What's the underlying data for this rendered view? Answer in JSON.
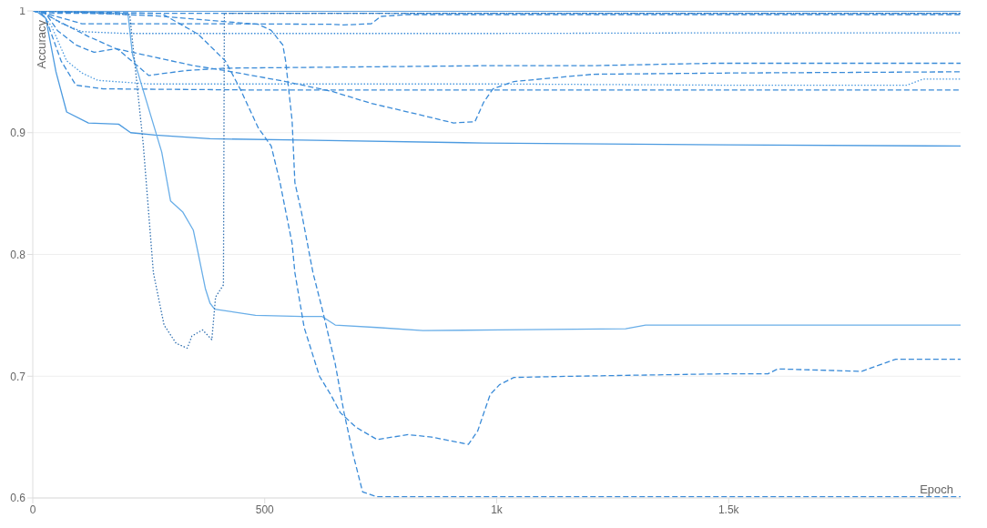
{
  "chart_data": {
    "type": "line",
    "xlabel": "Epoch",
    "ylabel": "Accuracy",
    "xlim": [
      0,
      2000
    ],
    "xticks": [
      0,
      500,
      {
        "value": 1000,
        "label": "1k"
      },
      {
        "value": 1500,
        "label": "1.5k"
      }
    ],
    "ylim": [
      0.6,
      1
    ],
    "yticks": [
      0.6,
      0.7,
      0.8,
      0.9,
      1
    ],
    "grid": "y",
    "series": [
      {
        "color": "#3a8bd8",
        "line_style": "solid",
        "x": [
          0,
          2000
        ],
        "values": [
          1,
          1
        ]
      },
      {
        "color": "#3a8bd8",
        "line_style": "dashed",
        "x": [
          0,
          50,
          500,
          1000,
          1500,
          2000
        ],
        "values": [
          1,
          0.998,
          0.998,
          0.998,
          0.998,
          0.998
        ]
      },
      {
        "color": "#3a8bd8",
        "line_style": "dashed",
        "x": [
          0,
          28,
          106,
          400,
          644,
          671,
          730,
          750,
          809,
          1200,
          1600,
          2000
        ],
        "values": [
          1,
          0.998,
          0.9895,
          0.9895,
          0.989,
          0.9885,
          0.9895,
          0.9955,
          0.997,
          0.997,
          0.997,
          0.997
        ]
      },
      {
        "color": "#3a8bd8",
        "line_style": "dotted",
        "x": [
          0,
          22,
          60,
          106,
          200,
          500,
          1000,
          1500,
          2000
        ],
        "values": [
          1,
          0.999,
          0.99,
          0.983,
          0.9815,
          0.9815,
          0.9815,
          0.982,
          0.982
        ]
      },
      {
        "color": "#3a8bd8",
        "line_style": "dashed",
        "x": [
          0,
          20,
          53,
          120,
          185,
          250,
          329,
          415,
          700,
          972,
          1200,
          1465,
          2000
        ],
        "values": [
          1,
          0.999,
          0.992,
          0.979,
          0.968,
          0.947,
          0.951,
          0.953,
          0.954,
          0.955,
          0.955,
          0.957,
          0.957
        ]
      },
      {
        "color": "#3a8bd8",
        "line_style": "dashed",
        "x": [
          0,
          28,
          53,
          93,
          132,
          179,
          250,
          348,
          415,
          545,
          644,
          730,
          809,
          907,
          953,
          972,
          992,
          1037,
          1207,
          1500,
          2000
        ],
        "values": [
          1,
          0.998,
          0.984,
          0.972,
          0.966,
          0.969,
          0.963,
          0.955,
          0.951,
          0.942,
          0.934,
          0.924,
          0.917,
          0.908,
          0.909,
          0.925,
          0.936,
          0.942,
          0.948,
          0.949,
          0.95
        ]
      },
      {
        "color": "#4d9be0",
        "line_style": "dotted",
        "x": [
          0,
          20,
          41,
          73,
          106,
          140,
          250,
          600,
          1000,
          1500,
          1884,
          1919,
          2000
        ],
        "values": [
          1,
          0.998,
          0.987,
          0.959,
          0.949,
          0.943,
          0.94,
          0.94,
          0.94,
          0.939,
          0.939,
          0.944,
          0.944
        ]
      },
      {
        "color": "#3a8bd8",
        "line_style": "dashed",
        "x": [
          0,
          15,
          28,
          61,
          93,
          152,
          500,
          1000,
          1500,
          2000
        ],
        "values": [
          1,
          0.999,
          0.994,
          0.959,
          0.939,
          0.936,
          0.935,
          0.935,
          0.935,
          0.935
        ]
      },
      {
        "color": "#4d9be0",
        "line_style": "solid",
        "x": [
          0,
          10,
          28,
          50,
          73,
          120,
          185,
          211,
          264,
          382,
          579,
          972,
          1500,
          2000
        ],
        "values": [
          1,
          0.999,
          0.994,
          0.95,
          0.917,
          0.908,
          0.907,
          0.9,
          0.898,
          0.895,
          0.894,
          0.8915,
          0.89,
          0.889
        ]
      },
      {
        "color": "#69aee8",
        "line_style": "solid",
        "x": [
          0,
          100,
          205,
          215,
          278,
          297,
          323,
          346,
          356,
          372,
          382,
          392,
          480,
          579,
          624,
          652,
          742,
          841,
          1006,
          1278,
          1321,
          1600,
          2000
        ],
        "values": [
          1,
          0.999,
          0.998,
          0.964,
          0.884,
          0.844,
          0.835,
          0.82,
          0.802,
          0.772,
          0.76,
          0.755,
          0.75,
          0.749,
          0.749,
          0.742,
          0.74,
          0.7375,
          0.738,
          0.739,
          0.742,
          0.742,
          0.742
        ]
      },
      {
        "color": "#2f6fb0",
        "line_style": "dotted",
        "x": [
          0,
          100,
          209,
          238,
          260,
          283,
          309,
          333,
          343,
          366,
          386,
          394,
          411,
          413,
          500,
          1000,
          1500,
          2000
        ],
        "values": [
          1,
          0.999,
          0.997,
          0.891,
          0.785,
          0.742,
          0.727,
          0.723,
          0.733,
          0.738,
          0.73,
          0.765,
          0.775,
          0.998,
          0.998,
          0.998,
          0.998,
          0.998
        ]
      },
      {
        "color": "#3a8bd8",
        "line_style": "dashed",
        "x": [
          0,
          264,
          486,
          514,
          539,
          545,
          559,
          565,
          579,
          592,
          604,
          624,
          652,
          671,
          691,
          711,
          742,
          900,
          1200,
          1600,
          2000
        ],
        "values": [
          1,
          0.996,
          0.989,
          0.984,
          0.972,
          0.959,
          0.91,
          0.859,
          0.835,
          0.809,
          0.785,
          0.755,
          0.71,
          0.67,
          0.635,
          0.605,
          0.601,
          0.601,
          0.601,
          0.601,
          0.601
        ]
      },
      {
        "color": "#3a8bd8",
        "line_style": "dashed",
        "x": [
          0,
          277,
          356,
          415,
          447,
          486,
          514,
          533,
          559,
          565,
          585,
          618,
          642,
          663,
          697,
          742,
          809,
          860,
          939,
          959,
          986,
          1006,
          1037,
          1169,
          1496,
          1585,
          1606,
          1787,
          1860,
          2000
        ],
        "values": [
          1,
          0.998,
          0.981,
          0.959,
          0.936,
          0.904,
          0.889,
          0.859,
          0.809,
          0.785,
          0.74,
          0.7,
          0.685,
          0.67,
          0.658,
          0.648,
          0.652,
          0.65,
          0.644,
          0.655,
          0.685,
          0.693,
          0.699,
          0.7,
          0.702,
          0.702,
          0.706,
          0.704,
          0.714,
          0.714
        ]
      }
    ]
  }
}
